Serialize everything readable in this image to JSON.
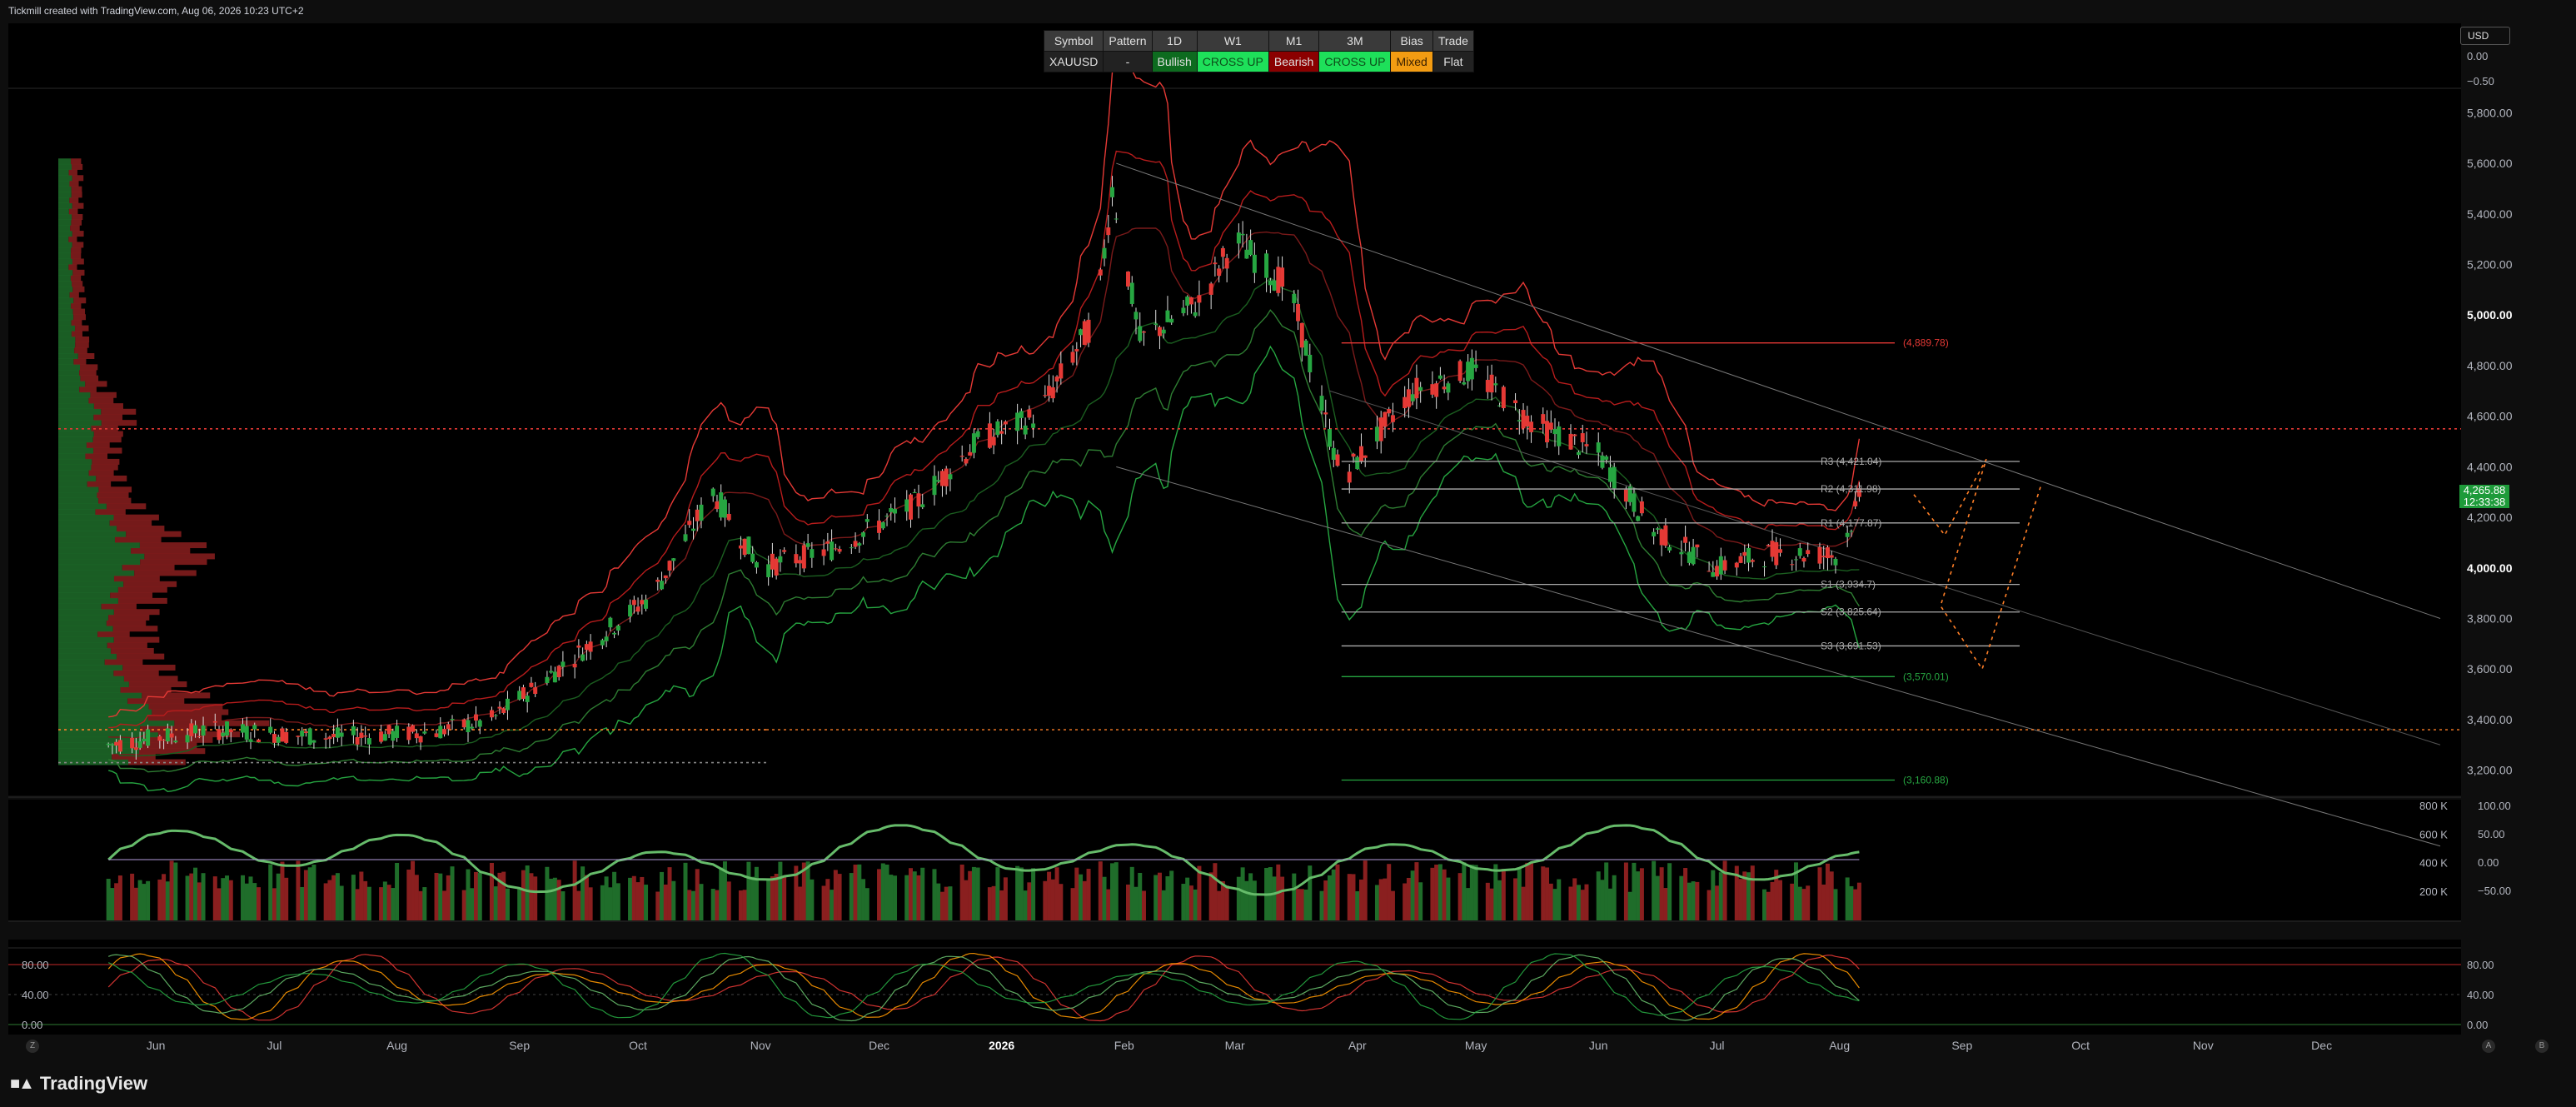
{
  "caption": "Tickmill created with TradingView.com, Aug 06, 2026 10:23 UTC+2",
  "brand": "TradingView",
  "currency": "USD",
  "price_tag": {
    "price": "4,265.88",
    "countdown": "12:33:38"
  },
  "corner_buttons": {
    "left": "Z",
    "right_a": "A",
    "right_b": "B"
  },
  "bias_table": {
    "headers": [
      "Symbol",
      "Pattern",
      "1D",
      "W1",
      "M1",
      "3M",
      "Bias",
      "Trade"
    ],
    "values": [
      "XAUUSD",
      "-",
      "Bullish",
      "CROSS UP",
      "Bearish",
      "CROSS UP",
      "Mixed",
      "Flat"
    ],
    "colors": [
      "#222222",
      "#222222",
      "#0d6b1f",
      "#1ee05a",
      "#8b0000",
      "#1ee05a",
      "#f39c12",
      "#222222"
    ],
    "text_colors": [
      "#e0e0e0",
      "#e0e0e0",
      "#e0e0e0",
      "#0d4d1a",
      "#e0e0e0",
      "#0d4d1a",
      "#3a2000",
      "#e0e0e0"
    ]
  },
  "colors": {
    "up": "#26a641",
    "down": "#e53935",
    "bg": "#000000",
    "grid": "#1a1a1a"
  },
  "chart_data": [
    {
      "type": "candlestick",
      "title": "",
      "x_ticks": [
        "Jun",
        "Jul",
        "Aug",
        "Sep",
        "Oct",
        "Nov",
        "Dec",
        "2026",
        "Feb",
        "Mar",
        "Apr",
        "May",
        "Jun",
        "Jul",
        "Aug",
        "Sep",
        "Oct",
        "Nov",
        "Dec"
      ],
      "ylim": [
        3100,
        5900
      ],
      "y_ticks": [
        "3,200.00",
        "3,400.00",
        "3,600.00",
        "3,800.00",
        "4,000.00",
        "4,200.00",
        "4,400.00",
        "4,600.00",
        "4,800.00",
        "5,000.00",
        "5,200.00",
        "5,400.00",
        "5,600.00",
        "5,800.00"
      ],
      "approx_close_path": [
        [
          "2025-05-20",
          3300
        ],
        [
          "2025-06-15",
          3360
        ],
        [
          "2025-07-15",
          3330
        ],
        [
          "2025-08-10",
          3350
        ],
        [
          "2025-08-25",
          3400
        ],
        [
          "2025-09-15",
          3650
        ],
        [
          "2025-10-05",
          3900
        ],
        [
          "2025-10-20",
          4300
        ],
        [
          "2025-11-01",
          4000
        ],
        [
          "2025-11-20",
          4080
        ],
        [
          "2025-12-10",
          4250
        ],
        [
          "2025-12-26",
          4500
        ],
        [
          "2026-01-10",
          4600
        ],
        [
          "2026-01-25",
          5000
        ],
        [
          "2026-01-29",
          5500
        ],
        [
          "2026-02-05",
          4900
        ],
        [
          "2026-02-20",
          5050
        ],
        [
          "2026-03-01",
          5300
        ],
        [
          "2026-03-15",
          5100
        ],
        [
          "2026-03-28",
          4350
        ],
        [
          "2026-04-15",
          4700
        ],
        [
          "2026-04-30",
          4780
        ],
        [
          "2026-05-15",
          4580
        ],
        [
          "2026-06-01",
          4450
        ],
        [
          "2026-06-15",
          4150
        ],
        [
          "2026-07-01",
          4000
        ],
        [
          "2026-07-15",
          4060
        ],
        [
          "2026-08-01",
          4050
        ],
        [
          "2026-08-06",
          4266
        ]
      ],
      "levels": [
        {
          "label": "(4,889.78)",
          "value": 4889.78,
          "color": "#e53935"
        },
        {
          "label": "R3 (4,421.04)",
          "value": 4421.04,
          "color": "#aaaaaa"
        },
        {
          "label": "R2 (4,311.98)",
          "value": 4311.98,
          "color": "#aaaaaa"
        },
        {
          "label": "R1 (4,177.87)",
          "value": 4177.87,
          "color": "#aaaaaa"
        },
        {
          "label": "S1 (3,934.7)",
          "value": 3934.7,
          "color": "#aaaaaa"
        },
        {
          "label": "S2 (3,825.64)",
          "value": 3825.64,
          "color": "#aaaaaa"
        },
        {
          "label": "S3 (3,691.53)",
          "value": 3691.53,
          "color": "#aaaaaa"
        },
        {
          "label": "(3,570.01)",
          "value": 3570.01,
          "color": "#26a641"
        },
        {
          "label": "(3,160.88)",
          "value": 3160.88,
          "color": "#26a641"
        }
      ],
      "dotted_levels": [
        {
          "value": 4550,
          "color": "#e53935"
        },
        {
          "value": 3360,
          "color": "#ff7f27"
        },
        {
          "value": 3230,
          "color": "#888888"
        }
      ]
    },
    {
      "type": "bar",
      "title": "",
      "y_ticks": [
        "800 K",
        "600 K",
        "400 K",
        "200 K"
      ],
      "right_ticks": [
        "100.00",
        "50.00",
        "0.00",
        "−50.00"
      ]
    },
    {
      "type": "line",
      "title": "",
      "y_ticks": [
        "80.00",
        "40.00",
        "0.00"
      ]
    }
  ],
  "top_axis": {
    "ticks": [
      "0.00",
      "−0.50"
    ]
  }
}
